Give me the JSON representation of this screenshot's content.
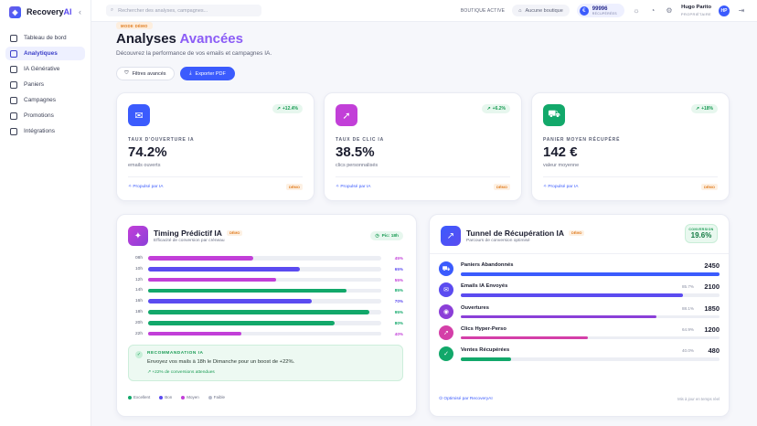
{
  "brand": {
    "name_main": "Recovery",
    "name_accent": "AI"
  },
  "sidebar": {
    "items": [
      {
        "label": "Tableau de bord",
        "active": false
      },
      {
        "label": "Analytiques",
        "active": true
      },
      {
        "label": "IA Générative",
        "active": false
      },
      {
        "label": "Paniers",
        "active": false
      },
      {
        "label": "Campagnes",
        "active": false
      },
      {
        "label": "Promotions",
        "active": false
      },
      {
        "label": "Intégrations",
        "active": false
      }
    ]
  },
  "topbar": {
    "search_placeholder": "Rechercher des analyses, campagnes...",
    "boutique_label": "BOUTIQUE ACTIVE",
    "boutique_value": "Aucune boutique",
    "credits_value": "99996",
    "credits_label": "RÉCUPÉRÉES",
    "user_name": "Hugo Parito",
    "user_role": "PROPRIÉTAIRE",
    "avatar_initials": "HP"
  },
  "header": {
    "mode_badge": "MODE DÉMO",
    "title_main": "Analyses",
    "title_accent": "Avancées",
    "subtitle": "Découvrez la performance de vos emails et campagnes IA.",
    "filter_button": "Filtres avancés",
    "export_button": "Exporter PDF"
  },
  "kpis": [
    {
      "label": "TAUX D'OUVERTURE IA",
      "value": "74.2%",
      "desc": "emails ouverts",
      "trend": "+12.4%",
      "powered": "Propulsé par IA",
      "demo": "DÉMO",
      "color": "#3b5bfd",
      "icon": "mail-icon"
    },
    {
      "label": "TAUX DE CLIC IA",
      "value": "38.5%",
      "desc": "clics personnalisés",
      "trend": "+6.2%",
      "powered": "Propulsé par IA",
      "demo": "DÉMO",
      "color": "#c23fd8",
      "icon": "cursor-icon"
    },
    {
      "label": "PANIER MOYEN RÉCUPÉRÉ",
      "value": "142 €",
      "desc": "valeur moyenne",
      "trend": "+18%",
      "powered": "Propulsé par IA",
      "demo": "DÉMO",
      "color": "#12a86a",
      "icon": "cart-icon"
    }
  ],
  "timing": {
    "title": "Timing Prédictif IA",
    "badge": "DÉMO",
    "subtitle": "Efficacité de conversion par créneau",
    "peak": "Pic: 18h",
    "rows": [
      {
        "label": "08h",
        "value": 45,
        "pct": "45%",
        "color": "#c23fd8"
      },
      {
        "label": "10h",
        "value": 65,
        "pct": "65%",
        "color": "#5b4bf0"
      },
      {
        "label": "12h",
        "value": 55,
        "pct": "55%",
        "color": "#c23fd8"
      },
      {
        "label": "14h",
        "value": 85,
        "pct": "85%",
        "color": "#12a86a"
      },
      {
        "label": "16h",
        "value": 70,
        "pct": "70%",
        "color": "#5b4bf0"
      },
      {
        "label": "18h",
        "value": 95,
        "pct": "95%",
        "color": "#12a86a"
      },
      {
        "label": "20h",
        "value": 80,
        "pct": "80%",
        "color": "#12a86a"
      },
      {
        "label": "22h",
        "value": 40,
        "pct": "40%",
        "color": "#c23fd8"
      }
    ],
    "reco_title": "RECOMMANDATION IA",
    "reco_text": "Envoyez vos mails à 18h le Dimanche pour un boost de +22%.",
    "reco_gain": "+22% de conversions attendues",
    "legend": [
      {
        "label": "Excellent",
        "color": "#12a86a"
      },
      {
        "label": "Bon",
        "color": "#5b4bf0"
      },
      {
        "label": "Moyen",
        "color": "#c23fd8"
      },
      {
        "label": "Faible",
        "color": "#b8bccb"
      }
    ]
  },
  "funnel": {
    "title": "Tunnel de Récupération IA",
    "badge": "DÉMO",
    "subtitle": "Parcours de conversion optimisé",
    "conversion_label": "CONVERSION",
    "conversion_value": "19.6%",
    "steps": [
      {
        "name": "Paniers Abandonnés",
        "pct": "",
        "value": "2450",
        "fill": 1.0,
        "color": "#3b5bfd",
        "icon": "cart-icon"
      },
      {
        "name": "Emails IA Envoyés",
        "pct": "85.7%",
        "value": "2100",
        "fill": 0.857,
        "color": "#5b4bf0",
        "icon": "mail-icon"
      },
      {
        "name": "Ouvertures",
        "pct": "88.1%",
        "value": "1850",
        "fill": 0.755,
        "color": "#8b3fd8",
        "icon": "eye-icon"
      },
      {
        "name": "Clics Hyper-Perso",
        "pct": "64.9%",
        "value": "1200",
        "fill": 0.49,
        "color": "#d43fa8",
        "icon": "cursor-icon"
      },
      {
        "name": "Ventes Récupérées",
        "pct": "40.0%",
        "value": "480",
        "fill": 0.196,
        "color": "#12a86a",
        "icon": "check-icon"
      }
    ],
    "footer_left": "Optimisé par RecoveryAI",
    "footer_right": "Mis à jour en temps réel"
  }
}
